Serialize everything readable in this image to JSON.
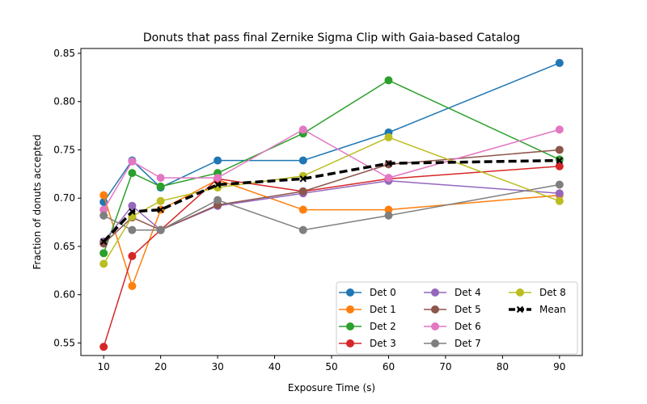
{
  "chart_data": {
    "type": "line",
    "title": "Donuts that pass final Zernike Sigma Clip with Gaia-based Catalog",
    "xlabel": "Exposure Time (s)",
    "ylabel": "Fraction of donuts accepted",
    "xlim": [
      6,
      94
    ],
    "ylim": [
      0.537,
      0.855
    ],
    "xticks": [
      "10",
      "20",
      "30",
      "40",
      "50",
      "60",
      "70",
      "80",
      "90"
    ],
    "yticks": [
      "0.55",
      "0.60",
      "0.65",
      "0.70",
      "0.75",
      "0.80",
      "0.85"
    ],
    "legend_position": "lower-right",
    "x": [
      10,
      15,
      20,
      30,
      45,
      60,
      90
    ],
    "series": [
      {
        "name": "Det 0",
        "color": "#1f77b4",
        "values": [
          0.696,
          0.739,
          0.711,
          0.739,
          0.739,
          0.768,
          0.84
        ]
      },
      {
        "name": "Det 1",
        "color": "#ff7f0e",
        "values": [
          0.703,
          0.609,
          0.688,
          0.719,
          0.688,
          0.688,
          0.703
        ]
      },
      {
        "name": "Det 2",
        "color": "#2ca02c",
        "values": [
          0.643,
          0.726,
          0.712,
          0.726,
          0.767,
          0.822,
          0.74
        ]
      },
      {
        "name": "Det 3",
        "color": "#d62728",
        "values": [
          0.546,
          0.64,
          0.667,
          0.72,
          0.707,
          0.72,
          0.733
        ]
      },
      {
        "name": "Det 4",
        "color": "#9467bd",
        "values": [
          0.655,
          0.692,
          0.667,
          0.692,
          0.705,
          0.718,
          0.705
        ]
      },
      {
        "name": "Det 5",
        "color": "#8c564b",
        "values": [
          0.653,
          0.68,
          0.667,
          0.693,
          0.707,
          0.735,
          0.75
        ]
      },
      {
        "name": "Det 6",
        "color": "#e377c2",
        "values": [
          0.688,
          0.738,
          0.721,
          0.721,
          0.771,
          0.721,
          0.771
        ]
      },
      {
        "name": "Det 7",
        "color": "#7f7f7f",
        "values": [
          0.682,
          0.667,
          0.667,
          0.698,
          0.667,
          0.682,
          0.714
        ]
      },
      {
        "name": "Det 8",
        "color": "#bcbd22",
        "values": [
          0.632,
          0.681,
          0.697,
          0.711,
          0.723,
          0.763,
          0.697
        ]
      },
      {
        "name": "Mean",
        "color": "#000000",
        "dashed": true,
        "marker": "x",
        "values": [
          0.655,
          0.686,
          0.688,
          0.714,
          0.72,
          0.736,
          0.739
        ]
      }
    ]
  }
}
